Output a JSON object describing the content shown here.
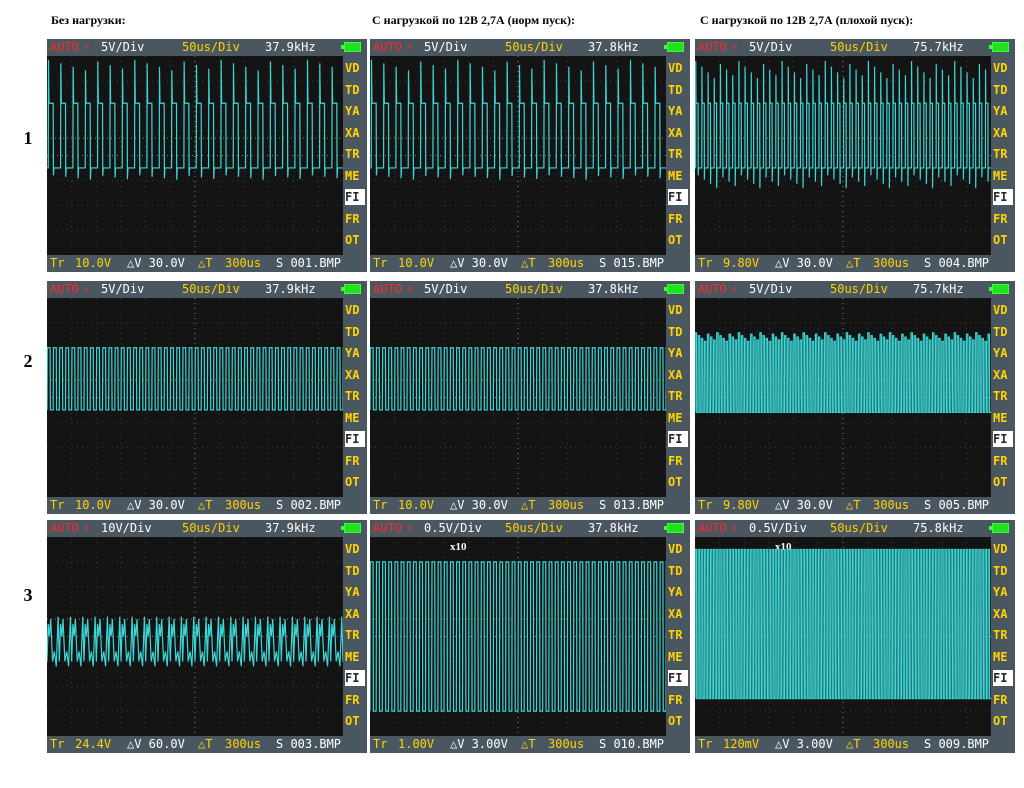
{
  "column_headers": [
    "Без нагрузки:",
    "С нагрузкой по 12В 2,7А (норм пуск):",
    "С нагрузкой по 12В 2,7А (плохой пуск):"
  ],
  "row_labels": [
    "1",
    "2",
    "3"
  ],
  "side_menu": [
    "VD",
    "TD",
    "YA",
    "XA",
    "TR",
    "ME",
    "FI",
    "FR",
    "OT"
  ],
  "selected_menu": "FI",
  "colors": {
    "trace": "#3dd6d6",
    "yellow": "#ffd400",
    "red": "#ff2a2a",
    "bar": "#4a5660",
    "screen": "#141414"
  },
  "scopes": [
    {
      "auto": "AUTO",
      "trigger_icon": "⚡",
      "vdiv": "5V/Div",
      "tdiv": "50us/Div",
      "freq": "37.9kHz",
      "tr_label": "Tr",
      "trigger_level": "10.0V",
      "dv": "△V 30.0V",
      "dt_label": "△T",
      "dt": "300us",
      "file": "S 001.BMP",
      "x10": "",
      "wave": "normal_spikes",
      "period_div": 0.5,
      "high_v": 10.5,
      "low_v": -2.5,
      "spike_v": 18,
      "trace_offset_div": 0
    },
    {
      "auto": "AUTO",
      "trigger_icon": "⚡",
      "vdiv": "5V/Div",
      "tdiv": "50us/Div",
      "freq": "37.8kHz",
      "tr_label": "Tr",
      "trigger_level": "10.0V",
      "dv": "△V 30.0V",
      "dt_label": "△T",
      "dt": "300us",
      "file": "S 015.BMP",
      "x10": "",
      "wave": "normal_spikes",
      "period_div": 0.5,
      "high_v": 10.5,
      "low_v": -2.5,
      "spike_v": 18,
      "trace_offset_div": 0
    },
    {
      "auto": "AUTO",
      "trigger_icon": "⚡",
      "vdiv": "5V/Div",
      "tdiv": "50us/Div",
      "freq": "75.7kHz",
      "tr_label": "Tr",
      "trigger_level": "9.80V",
      "dv": "△V 30.0V",
      "dt_label": "△T",
      "dt": "300us",
      "file": "S 004.BMP",
      "x10": "",
      "wave": "bad_spikes",
      "period_div": 0.25,
      "high_v": 10.5,
      "low_v": -2.5,
      "spike_v": 17,
      "trace_offset_div": 0
    },
    {
      "auto": "AUTO",
      "trigger_icon": "⚡",
      "vdiv": "5V/Div",
      "tdiv": "50us/Div",
      "freq": "37.9kHz",
      "tr_label": "Tr",
      "trigger_level": "10.0V",
      "dv": "△V 30.0V",
      "dt_label": "△T",
      "dt": "300us",
      "file": "S 002.BMP",
      "x10": "",
      "wave": "square",
      "period_div": 0.25,
      "high_v": 10,
      "low_v": -2.5,
      "spike_v": 11,
      "trace_offset_div": 0
    },
    {
      "auto": "AUTO",
      "trigger_icon": "⚡",
      "vdiv": "5V/Div",
      "tdiv": "50us/Div",
      "freq": "37.8kHz",
      "tr_label": "Tr",
      "trigger_level": "10.0V",
      "dv": "△V 30.0V",
      "dt_label": "△T",
      "dt": "300us",
      "file": "S 013.BMP",
      "x10": "",
      "wave": "square",
      "period_div": 0.25,
      "high_v": 10,
      "low_v": -2.5,
      "spike_v": 11,
      "trace_offset_div": 0
    },
    {
      "auto": "AUTO",
      "trigger_icon": "⚡",
      "vdiv": "5V/Div",
      "tdiv": "50us/Div",
      "freq": "75.7kHz",
      "tr_label": "Tr",
      "trigger_level": "9.80V",
      "dv": "△V 30.0V",
      "dt_label": "△T",
      "dt": "300us",
      "file": "S 005.BMP",
      "x10": "",
      "wave": "dense_square",
      "period_div": 0.125,
      "high_v": 12,
      "low_v": -3,
      "spike_v": 13,
      "trace_offset_div": 0
    },
    {
      "auto": "AUTO",
      "trigger_icon": "⚡",
      "vdiv": "10V/Div",
      "tdiv": "50us/Div",
      "freq": "37.9kHz",
      "tr_label": "Tr",
      "trigger_level": "24.4V",
      "dv": "△V 60.0V",
      "dt_label": "△T",
      "dt": "300us",
      "file": "S 003.BMP",
      "x10": "",
      "wave": "ringing",
      "period_div": 0.5,
      "high_v": 5,
      "low_v": -10,
      "spike_v": 10,
      "trace_offset_div": 0
    },
    {
      "auto": "AUTO",
      "trigger_icon": "⚡",
      "vdiv": "0.5V/Div",
      "tdiv": "50us/Div",
      "freq": "37.8kHz",
      "tr_label": "Tr",
      "trigger_level": "1.00V",
      "dv": "△V 3.00V",
      "dt_label": "△T",
      "dt": "300us",
      "file": "S 010.BMP",
      "x10": "x10",
      "wave": "clean_square",
      "period_div": 0.25,
      "high_v": 1.5,
      "low_v": -1.5,
      "spike_v": 1.5,
      "trace_offset_div": 0
    },
    {
      "auto": "AUTO",
      "trigger_icon": "⚡",
      "vdiv": "0.5V/Div",
      "tdiv": "50us/Div",
      "freq": "75.8kHz",
      "tr_label": "Tr",
      "trigger_level": "120mV",
      "dv": "△V 3.00V",
      "dt_label": "△T",
      "dt": "300us",
      "file": "S 009.BMP",
      "x10": "x10",
      "wave": "dense_clean",
      "period_div": 0.125,
      "high_v": 1.5,
      "low_v": -1.5,
      "spike_v": 1.5,
      "trace_offset_div": -0.5
    }
  ]
}
